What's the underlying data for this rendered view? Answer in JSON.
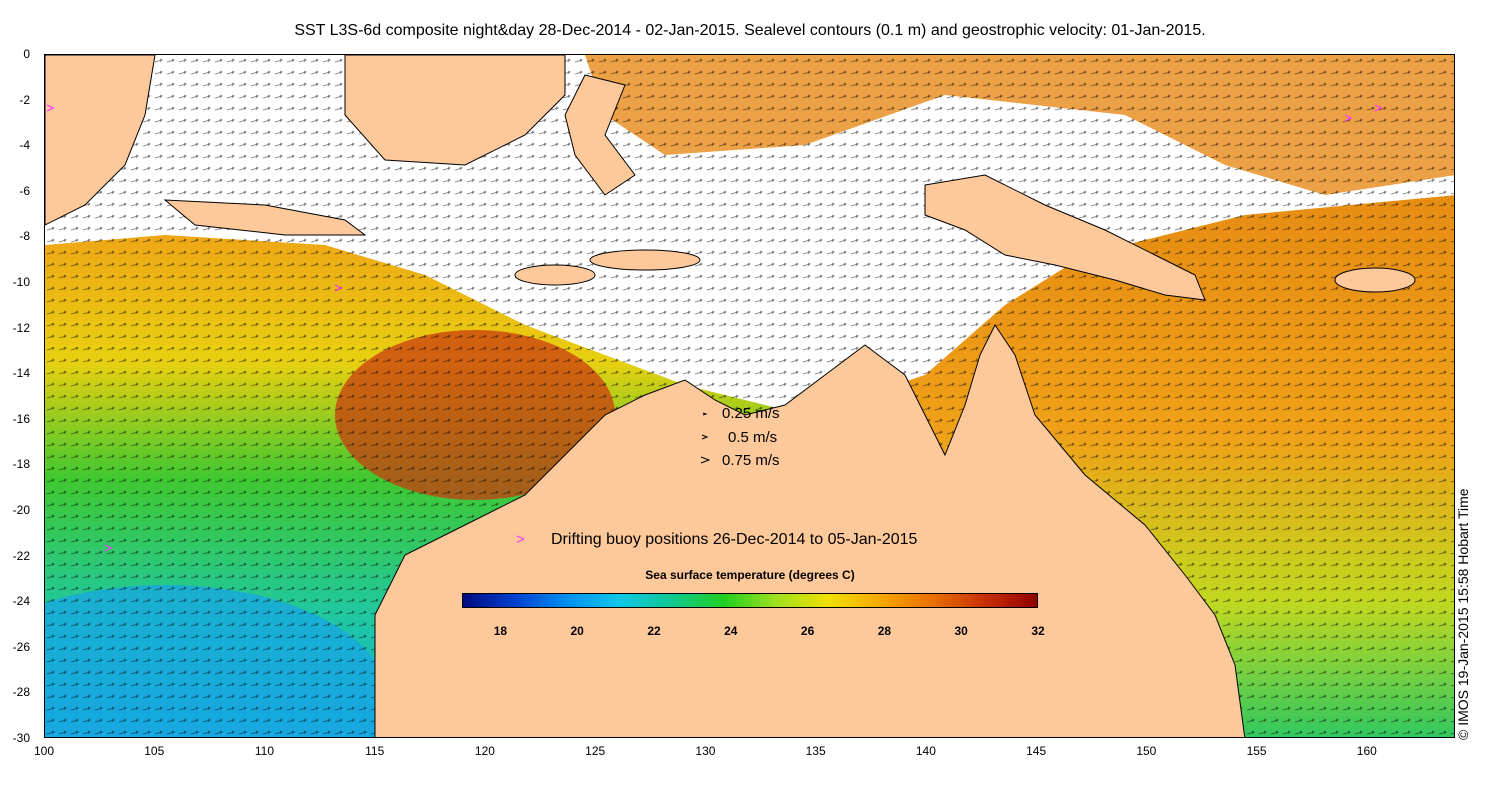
{
  "title": "SST L3S-6d composite night&day 28-Dec-2014 - 02-Jan-2015. Sealevel contours (0.1 m) and geostrophic velocity: 01-Jan-2015.",
  "map": {
    "lon_range": [
      100,
      164
    ],
    "lat_range": [
      -30,
      0
    ],
    "x_ticks": [
      "100",
      "105",
      "110",
      "115",
      "120",
      "125",
      "130",
      "135",
      "140",
      "145",
      "150",
      "155",
      "160"
    ],
    "y_ticks": [
      "0",
      "-2",
      "-4",
      "-6",
      "-8",
      "-10",
      "-12",
      "-14",
      "-16",
      "-18",
      "-20",
      "-22",
      "-24",
      "-26",
      "-28",
      "-30"
    ],
    "colors": {
      "land": "#fdc89a",
      "no_data": "#ffffff",
      "arrow": "#000000",
      "buoy": "#ff33ff",
      "contour": "#d8d8d8"
    }
  },
  "velocity_legend": [
    {
      "label": "0.25 m/s",
      "speed": 0.25
    },
    {
      "label": "0.5 m/s",
      "speed": 0.5
    },
    {
      "label": "0.75 m/s",
      "speed": 0.75
    }
  ],
  "buoy_legend": {
    "symbol": ">",
    "label": "Drifting buoy positions 26-Dec-2014 to 05-Jan-2015"
  },
  "colorbar": {
    "title": "Sea surface temperature (degrees C)",
    "range": [
      17,
      32
    ],
    "ticks": [
      "18",
      "20",
      "22",
      "24",
      "26",
      "28",
      "30",
      "32"
    ],
    "stops": [
      "#000a80",
      "#0040d0",
      "#0090f0",
      "#10c8e8",
      "#10c890",
      "#20d020",
      "#a0e020",
      "#f0e000",
      "#f8a800",
      "#e87000",
      "#c83000",
      "#900000"
    ]
  },
  "credit": "© IMOS 19-Jan-2015 15:58 Hobart Time"
}
